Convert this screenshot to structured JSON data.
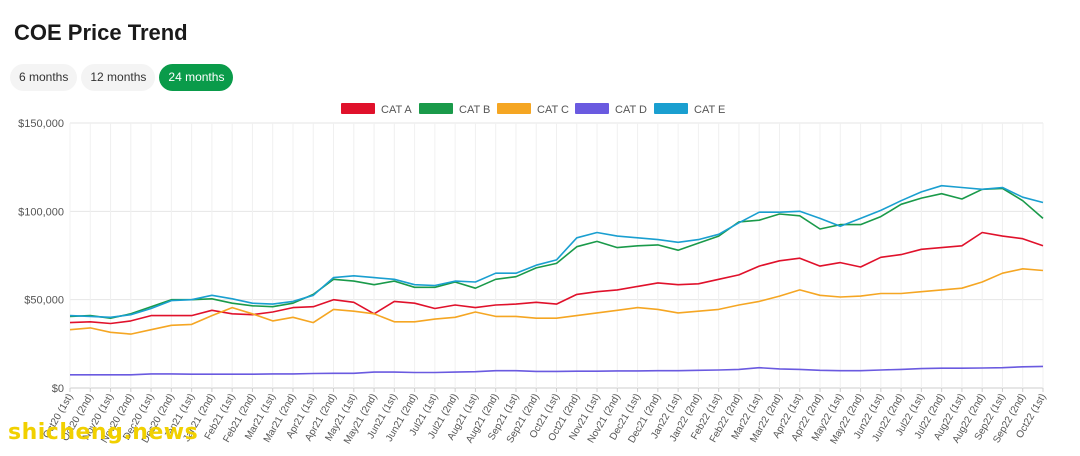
{
  "header": {
    "title": "COE Price Trend"
  },
  "tabs": [
    {
      "label": "6 months",
      "active": false
    },
    {
      "label": "12 months",
      "active": false
    },
    {
      "label": "24 months",
      "active": true
    }
  ],
  "colors": {
    "accent": "#0a9b4a",
    "cat_a": "#e0112b",
    "cat_b": "#1a9a4a",
    "cat_c": "#f5a623",
    "cat_d": "#6a5ae0",
    "cat_e": "#1a9fd0"
  },
  "watermark": {
    "text": "shicheng.news"
  },
  "chart_data": {
    "type": "line",
    "title": "",
    "xlabel": "",
    "ylabel": "",
    "ylim": [
      0,
      150000
    ],
    "yticks": [
      "$0",
      "$50,000",
      "$100,000",
      "$150,000"
    ],
    "ytick_values": [
      0,
      50000,
      100000,
      150000
    ],
    "grid": true,
    "legend_position": "top",
    "categories": [
      "Oct20 (1st)",
      "Oct20 (2nd)",
      "Nov20 (1st)",
      "Nov20 (2nd)",
      "Dec20 (1st)",
      "Dec20 (2nd)",
      "Jan21 (1st)",
      "Jan21 (2nd)",
      "Feb21 (1st)",
      "Feb21 (2nd)",
      "Mar21 (1st)",
      "Mar21 (2nd)",
      "Apr21 (1st)",
      "Apr21 (2nd)",
      "May21 (1st)",
      "May21 (2nd)",
      "Jun21 (1st)",
      "Jun21 (2nd)",
      "Jul21 (1st)",
      "Jul21 (2nd)",
      "Aug21 (1st)",
      "Aug21 (2nd)",
      "Sep21 (1st)",
      "Sep21 (2nd)",
      "Oct21 (1st)",
      "Oct21 (2nd)",
      "Nov21 (1st)",
      "Nov21 (2nd)",
      "Dec21 (1st)",
      "Dec21 (2nd)",
      "Jan22 (1st)",
      "Jan22 (2nd)",
      "Feb22 (1st)",
      "Feb22 (2nd)",
      "Mar22 (1st)",
      "Mar22 (2nd)",
      "Apr22 (1st)",
      "Apr22 (2nd)",
      "May22 (1st)",
      "May22 (2nd)",
      "Jun22 (1st)",
      "Jun22 (2nd)",
      "Jul22 (1st)",
      "Jul22 (2nd)",
      "Aug22 (1st)",
      "Aug22 (2nd)",
      "Sep22 (1st)",
      "Sep22 (2nd)",
      "Oct22 (1st)"
    ],
    "series": [
      {
        "name": "CAT A",
        "color": "#e0112b",
        "values": [
          37000,
          37500,
          36500,
          38000,
          41000,
          41000,
          41000,
          44000,
          42000,
          41500,
          43000,
          45500,
          46000,
          50000,
          48500,
          42000,
          49000,
          48000,
          45000,
          47000,
          45500,
          47000,
          47500,
          48500,
          47500,
          53000,
          54500,
          55500,
          57500,
          59500,
          58500,
          59000,
          61500,
          64000,
          69000,
          72000,
          73500,
          69000,
          71000,
          68500,
          74000,
          75500,
          78500,
          79500,
          80500,
          88000,
          86000,
          84500,
          80500
        ]
      },
      {
        "name": "CAT B",
        "color": "#1a9a4a",
        "values": [
          40500,
          41000,
          39500,
          42000,
          46000,
          50000,
          50000,
          50500,
          48000,
          46500,
          46000,
          48000,
          53000,
          61500,
          60500,
          58500,
          60500,
          57000,
          57000,
          60000,
          56500,
          61500,
          63000,
          68000,
          70500,
          80000,
          83000,
          79500,
          80500,
          81000,
          78000,
          82000,
          86000,
          94000,
          95000,
          98500,
          97500,
          90000,
          92500,
          92500,
          97000,
          104000,
          107500,
          110000,
          107000,
          112500,
          113000,
          106000,
          96000
        ]
      },
      {
        "name": "CAT C",
        "color": "#f5a623",
        "values": [
          33000,
          34000,
          31500,
          30500,
          33000,
          35500,
          36000,
          41000,
          45500,
          42000,
          38000,
          40000,
          37000,
          44500,
          43500,
          42000,
          37500,
          37500,
          39000,
          40000,
          43000,
          40500,
          40500,
          39500,
          39500,
          41000,
          42500,
          44000,
          45500,
          44500,
          42500,
          43500,
          44500,
          47000,
          49000,
          52000,
          55500,
          52500,
          51500,
          52000,
          53500,
          53500,
          54500,
          55500,
          56500,
          60000,
          65000,
          67500,
          66500
        ]
      },
      {
        "name": "CAT D",
        "color": "#6a5ae0",
        "values": [
          7500,
          7500,
          7500,
          7500,
          8000,
          8000,
          7800,
          7800,
          7800,
          7800,
          8000,
          8000,
          8200,
          8300,
          8300,
          9000,
          9000,
          8800,
          8800,
          9000,
          9200,
          9800,
          9800,
          9400,
          9400,
          9500,
          9500,
          9700,
          9700,
          9800,
          9800,
          10000,
          10200,
          10500,
          11500,
          10800,
          10500,
          10000,
          9800,
          9800,
          10200,
          10500,
          11000,
          11200,
          11200,
          11300,
          11500,
          12000,
          12200
        ]
      },
      {
        "name": "CAT E",
        "color": "#1a9fd0",
        "values": [
          41000,
          40500,
          40000,
          41500,
          45000,
          49500,
          50000,
          52500,
          50500,
          48000,
          47500,
          49000,
          52500,
          62500,
          63500,
          62500,
          61500,
          58500,
          58000,
          60500,
          60000,
          65000,
          65000,
          69500,
          72500,
          85000,
          88000,
          86000,
          85000,
          84000,
          82500,
          84000,
          87000,
          93500,
          99500,
          99500,
          100000,
          96000,
          91500,
          96000,
          100500,
          106000,
          111000,
          114500,
          113500,
          112500,
          113500,
          108000,
          105000
        ]
      }
    ]
  }
}
